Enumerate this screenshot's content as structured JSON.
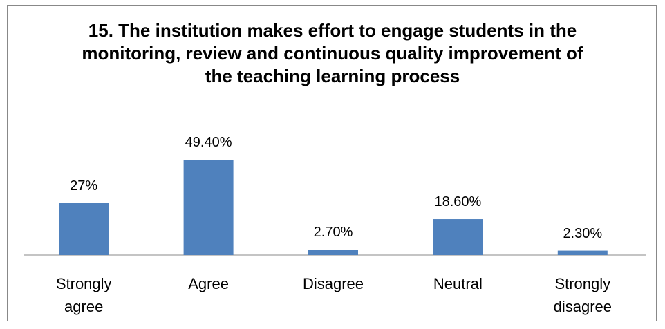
{
  "chart_data": {
    "type": "bar",
    "title": "15. The institution makes effort to engage students in the monitoring, review and continuous quality improvement of the teaching learning process",
    "categories": [
      "Strongly agree",
      "Agree",
      "Disagree",
      "Neutral",
      "Strongly disagree"
    ],
    "values": [
      27,
      49.4,
      2.7,
      18.6,
      2.3
    ],
    "value_labels": [
      "27%",
      "49.40%",
      "2.70%",
      "18.60%",
      "2.30%"
    ],
    "color": "#4f81bd"
  }
}
